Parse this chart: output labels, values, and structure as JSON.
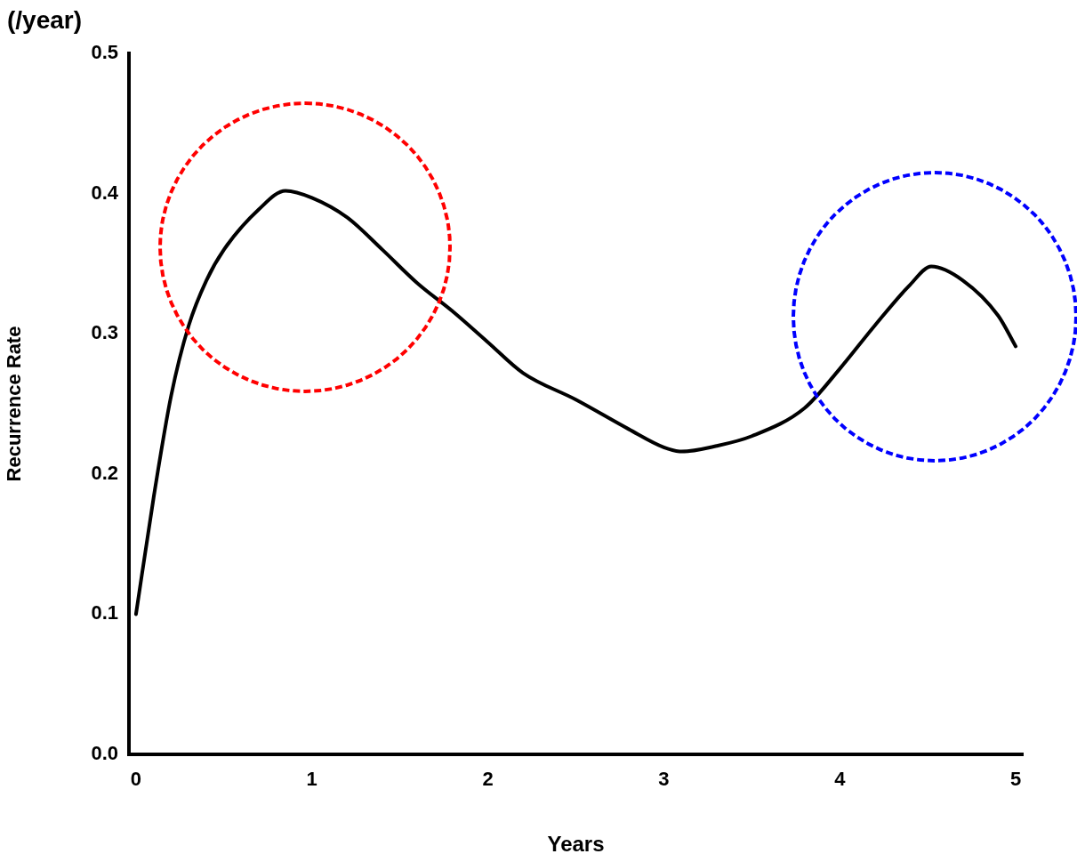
{
  "chart_data": {
    "type": "line",
    "xlabel": "Years",
    "ylabel": "Recurrence Rate",
    "annotations": [
      "(/year)"
    ],
    "x": [
      0,
      0.1,
      0.2,
      0.3,
      0.4,
      0.5,
      0.7,
      0.85,
      1.0,
      1.2,
      1.4,
      1.6,
      1.8,
      2.0,
      2.2,
      2.5,
      2.8,
      3.0,
      3.1,
      3.3,
      3.5,
      3.8,
      4.0,
      4.2,
      4.4,
      4.52,
      4.7,
      4.9,
      5.0
    ],
    "series": [
      {
        "color": "#000000",
        "values": [
          0.1,
          0.183,
          0.256,
          0.306,
          0.338,
          0.36,
          0.389,
          0.402,
          0.397,
          0.383,
          0.36,
          0.336,
          0.316,
          0.294,
          0.272,
          0.253,
          0.232,
          0.219,
          0.216,
          0.22,
          0.227,
          0.247,
          0.275,
          0.306,
          0.335,
          0.348,
          0.338,
          0.313,
          0.291
        ]
      }
    ],
    "xlim": [
      -0.04,
      5.04
    ],
    "xticks": [
      0,
      1,
      2,
      3,
      4,
      5
    ],
    "ylim": [
      0,
      0.5
    ],
    "yticks": [
      {
        "value": 0,
        "label": "0.0"
      },
      0.1,
      0.2,
      0.3,
      0.4,
      0.5
    ],
    "grid": false,
    "legend": false,
    "marker": "none",
    "line_style": "solid"
  }
}
